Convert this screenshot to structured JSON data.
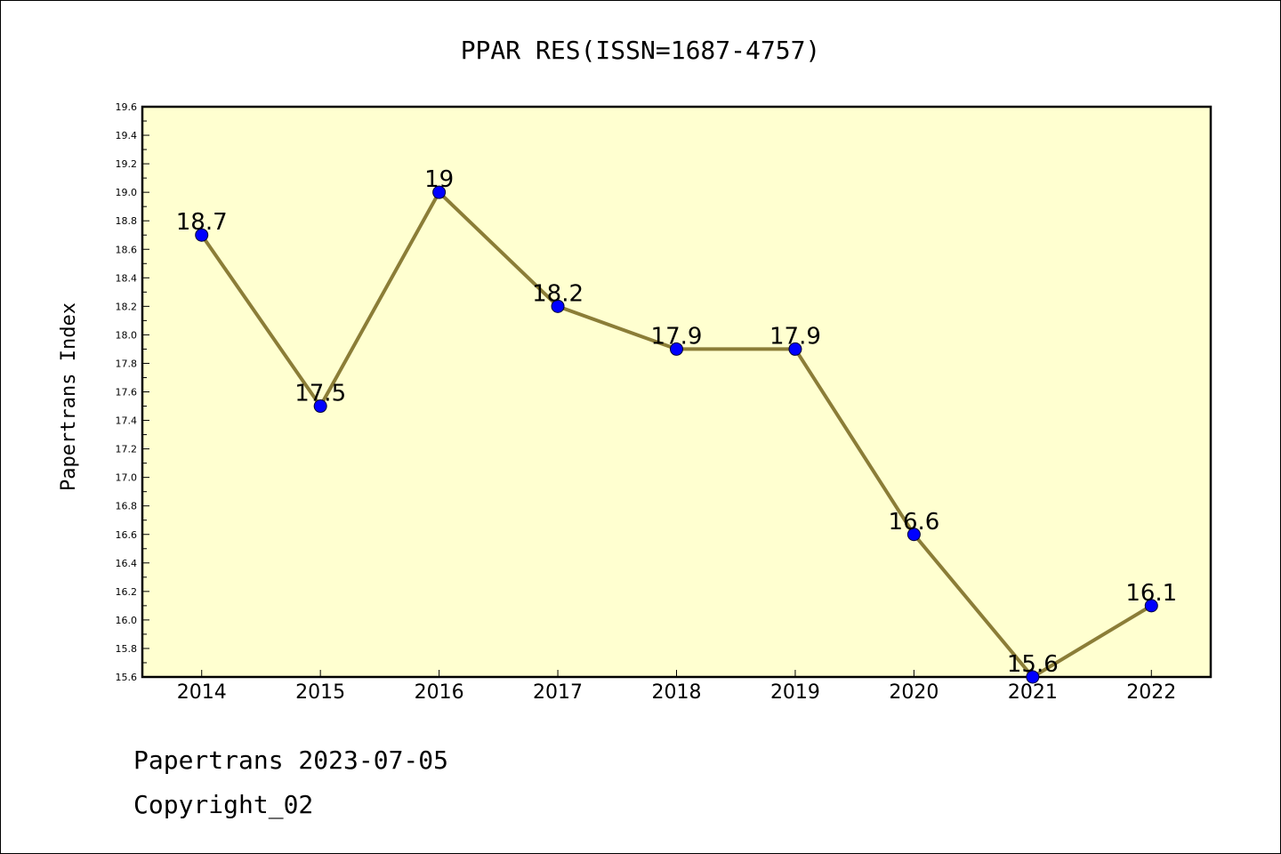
{
  "chart_data": {
    "type": "line",
    "title": "PPAR RES(ISSN=1687-4757)",
    "xlabel": "",
    "ylabel": "Papertrans Index",
    "categories": [
      "2014",
      "2015",
      "2016",
      "2017",
      "2018",
      "2019",
      "2020",
      "2021",
      "2022"
    ],
    "values": [
      18.7,
      17.5,
      19,
      18.2,
      17.9,
      17.9,
      16.6,
      15.6,
      16.1
    ],
    "data_labels": [
      "18.7",
      "17.5",
      "19",
      "18.2",
      "17.9",
      "17.9",
      "16.6",
      "15.6",
      "16.1"
    ],
    "ylim": [
      15.6,
      19.6
    ],
    "yticks": [
      "15.6",
      "15.8",
      "16.0",
      "16.2",
      "16.4",
      "16.6",
      "16.8",
      "17.0",
      "17.2",
      "17.4",
      "17.6",
      "17.8",
      "18.0",
      "18.2",
      "18.4",
      "18.6",
      "18.8",
      "19.0",
      "19.2",
      "19.4",
      "19.6"
    ],
    "grid": false,
    "legend": "none",
    "colors": {
      "plot_background": "#ffffd0",
      "line": "#8b7d37",
      "marker": "#0000ff"
    }
  },
  "footer": {
    "line1": "Papertrans 2023-07-05",
    "line2": "Copyright_02"
  }
}
